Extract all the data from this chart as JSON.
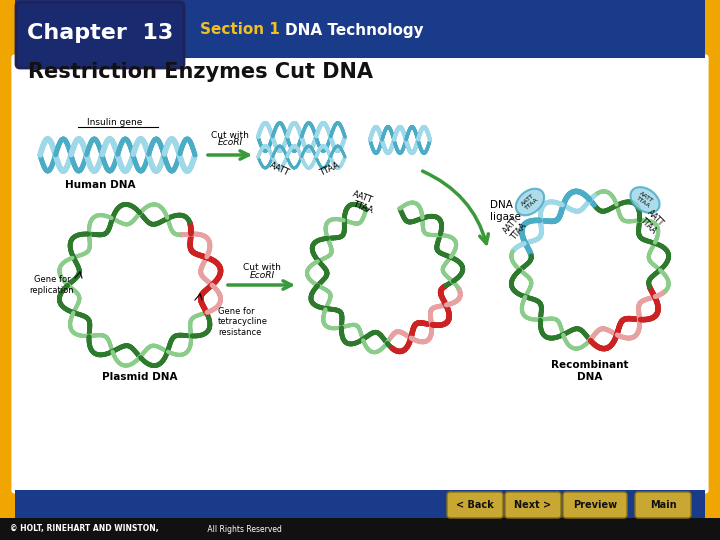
{
  "title": "Chapter 13",
  "section_label": "Section 1",
  "section_title": "DNA Technology",
  "slide_title": "Restriction Enzymes Cut DNA",
  "copyright": "© HOLT, RINEHART AND WINSTON,",
  "copyright2": " All Rights Reserved",
  "bg_outer": "#f0a500",
  "bg_blue": "#1a3a8a",
  "bg_white": "#ffffff",
  "header_box_color": "#1a2a6e",
  "chapter_text_color": "#ffffff",
  "section1_color": "#f0c020",
  "section_title_color": "#ffffff",
  "slide_title_color": "#111111",
  "nav_button_color": "#c8a832",
  "nav_text_color": "#111111",
  "footer_bg": "#111111",
  "footer_text_color": "#ffffff",
  "nav_buttons": [
    "< Back",
    "Next >",
    "Preview",
    "Main"
  ],
  "helix_blue": "#4bacc6",
  "helix_blue_light": "#9fd8e8",
  "helix_green_dark": "#2d7a2d",
  "helix_green_light": "#8acc8a",
  "helix_red": "#cc2222",
  "helix_pink": "#e8a0a0",
  "arrow_green": "#3a9a3a"
}
